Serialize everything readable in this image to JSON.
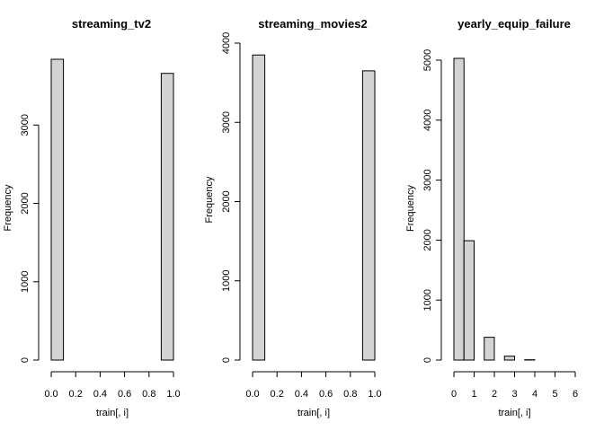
{
  "chart_data": [
    {
      "type": "bar",
      "title": "streaming_tv2",
      "xlabel": "train[, i]",
      "ylabel": "Frequency",
      "bin_edges": [
        0,
        0.1,
        0.2,
        0.3,
        0.4,
        0.5,
        0.6,
        0.7,
        0.8,
        0.9,
        1.0
      ],
      "values": [
        3840,
        0,
        0,
        0,
        0,
        0,
        0,
        0,
        0,
        3660
      ],
      "xlim": [
        0,
        1
      ],
      "ylim": [
        0,
        3840
      ],
      "xticks": [
        "0.0",
        "0.2",
        "0.4",
        "0.6",
        "0.8",
        "1.0"
      ],
      "xtick_values": [
        0,
        0.2,
        0.4,
        0.6,
        0.8,
        1.0
      ],
      "yticks": [
        "0",
        "1000",
        "2000",
        "3000"
      ],
      "ytick_values": [
        0,
        1000,
        2000,
        3000
      ],
      "grid": false
    },
    {
      "type": "bar",
      "title": "streaming_movies2",
      "xlabel": "train[, i]",
      "ylabel": "Frequency",
      "bin_edges": [
        0,
        0.1,
        0.2,
        0.3,
        0.4,
        0.5,
        0.6,
        0.7,
        0.8,
        0.9,
        1.0
      ],
      "values": [
        3850,
        0,
        0,
        0,
        0,
        0,
        0,
        0,
        0,
        3650
      ],
      "xlim": [
        0,
        1
      ],
      "ylim": [
        0,
        4000
      ],
      "xticks": [
        "0.0",
        "0.2",
        "0.4",
        "0.6",
        "0.8",
        "1.0"
      ],
      "xtick_values": [
        0,
        0.2,
        0.4,
        0.6,
        0.8,
        1.0
      ],
      "yticks": [
        "0",
        "1000",
        "2000",
        "3000",
        "4000"
      ],
      "ytick_values": [
        0,
        1000,
        2000,
        3000,
        4000
      ],
      "grid": false
    },
    {
      "type": "bar",
      "title": "yearly_equip_failure",
      "xlabel": "train[, i]",
      "ylabel": "Frequency",
      "bin_edges": [
        0,
        0.5,
        1,
        1.5,
        2,
        2.5,
        3,
        3.5,
        4,
        4.5,
        5,
        5.5,
        6
      ],
      "values": [
        5030,
        1990,
        0,
        380,
        0,
        65,
        0,
        5,
        0,
        0,
        0,
        0
      ],
      "xlim": [
        0,
        6
      ],
      "ylim": [
        0,
        5000
      ],
      "xticks": [
        "0",
        "1",
        "2",
        "3",
        "4",
        "5",
        "6"
      ],
      "xtick_values": [
        0,
        1,
        2,
        3,
        4,
        5,
        6
      ],
      "yticks": [
        "0",
        "1000",
        "2000",
        "3000",
        "4000",
        "5000"
      ],
      "ytick_values": [
        0,
        1000,
        2000,
        3000,
        4000,
        5000
      ],
      "grid": false
    }
  ]
}
